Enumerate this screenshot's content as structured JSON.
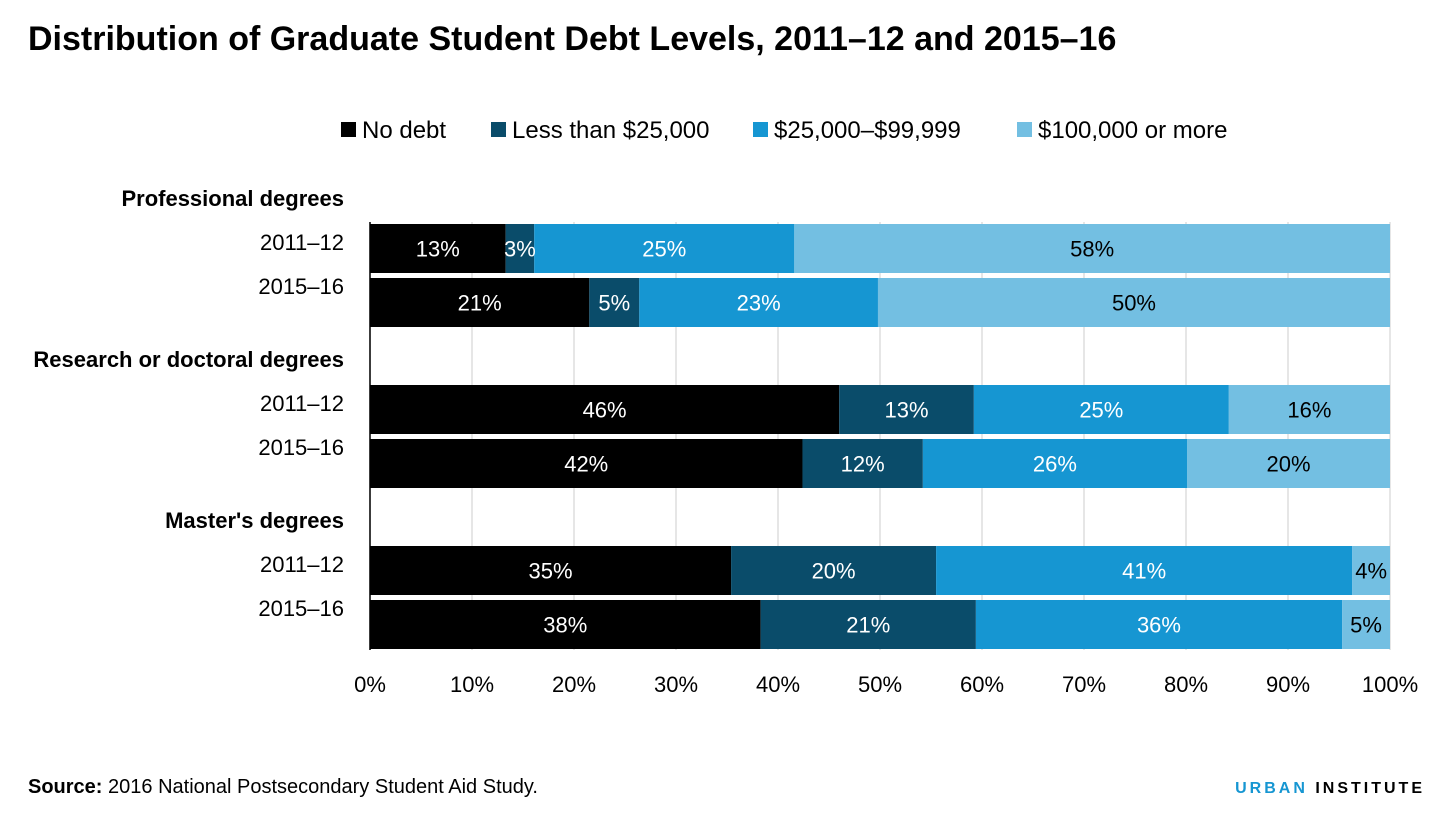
{
  "title": "Distribution of Graduate Student Debt Levels, 2011–12 and 2015–16",
  "source": {
    "label": "Source:",
    "text": " 2016 National Postsecondary Student Aid Study."
  },
  "brand": {
    "part1": "URBAN",
    "part2": "INSTITUTE"
  },
  "colors": {
    "no_debt": "#000000",
    "lt_25k": "#0a4c6a",
    "25k_99k": "#1696d2",
    "gte_100k": "#73bfe2",
    "label_light": "#ffffff",
    "label_dark": "#000000"
  },
  "chart_data": {
    "type": "bar",
    "orientation": "horizontal",
    "stacked": true,
    "xlim": [
      0,
      100
    ],
    "x_ticks": [
      "0%",
      "10%",
      "20%",
      "30%",
      "40%",
      "50%",
      "60%",
      "70%",
      "80%",
      "90%",
      "100%"
    ],
    "grid": true,
    "legend_position": "top",
    "series": [
      {
        "name": "No debt",
        "color": "#000000"
      },
      {
        "name": "Less than $25,000",
        "color": "#0a4c6a"
      },
      {
        "name": "$25,000–$99,999",
        "color": "#1696d2"
      },
      {
        "name": "$100,000 or more",
        "color": "#73bfe2"
      }
    ],
    "groups": [
      {
        "name": "Professional degrees",
        "rows": [
          {
            "label": "2011–12",
            "values": [
              13.3,
              2.8,
              25.5,
              58.4
            ],
            "labels": [
              "13%",
              "3%",
              "25%",
              "58%"
            ]
          },
          {
            "label": "2015–16",
            "values": [
              21.5,
              4.9,
              23.4,
              50.2
            ],
            "labels": [
              "21%",
              "5%",
              "23%",
              "50%"
            ]
          }
        ]
      },
      {
        "name": "Research or doctoral degrees",
        "rows": [
          {
            "label": "2011–12",
            "values": [
              46.0,
              13.2,
              25.0,
              15.8
            ],
            "labels": [
              "46%",
              "13%",
              "25%",
              "16%"
            ]
          },
          {
            "label": "2015–16",
            "values": [
              42.4,
              11.8,
              25.9,
              19.9
            ],
            "labels": [
              "42%",
              "12%",
              "26%",
              "20%"
            ]
          }
        ]
      },
      {
        "name": "Master's degrees",
        "rows": [
          {
            "label": "2011–12",
            "values": [
              35.4,
              20.1,
              40.8,
              3.7
            ],
            "labels": [
              "35%",
              "20%",
              "41%",
              "4%"
            ]
          },
          {
            "label": "2015–16",
            "values": [
              38.3,
              21.1,
              35.9,
              4.7
            ],
            "labels": [
              "38%",
              "21%",
              "36%",
              "5%"
            ]
          }
        ]
      }
    ]
  }
}
